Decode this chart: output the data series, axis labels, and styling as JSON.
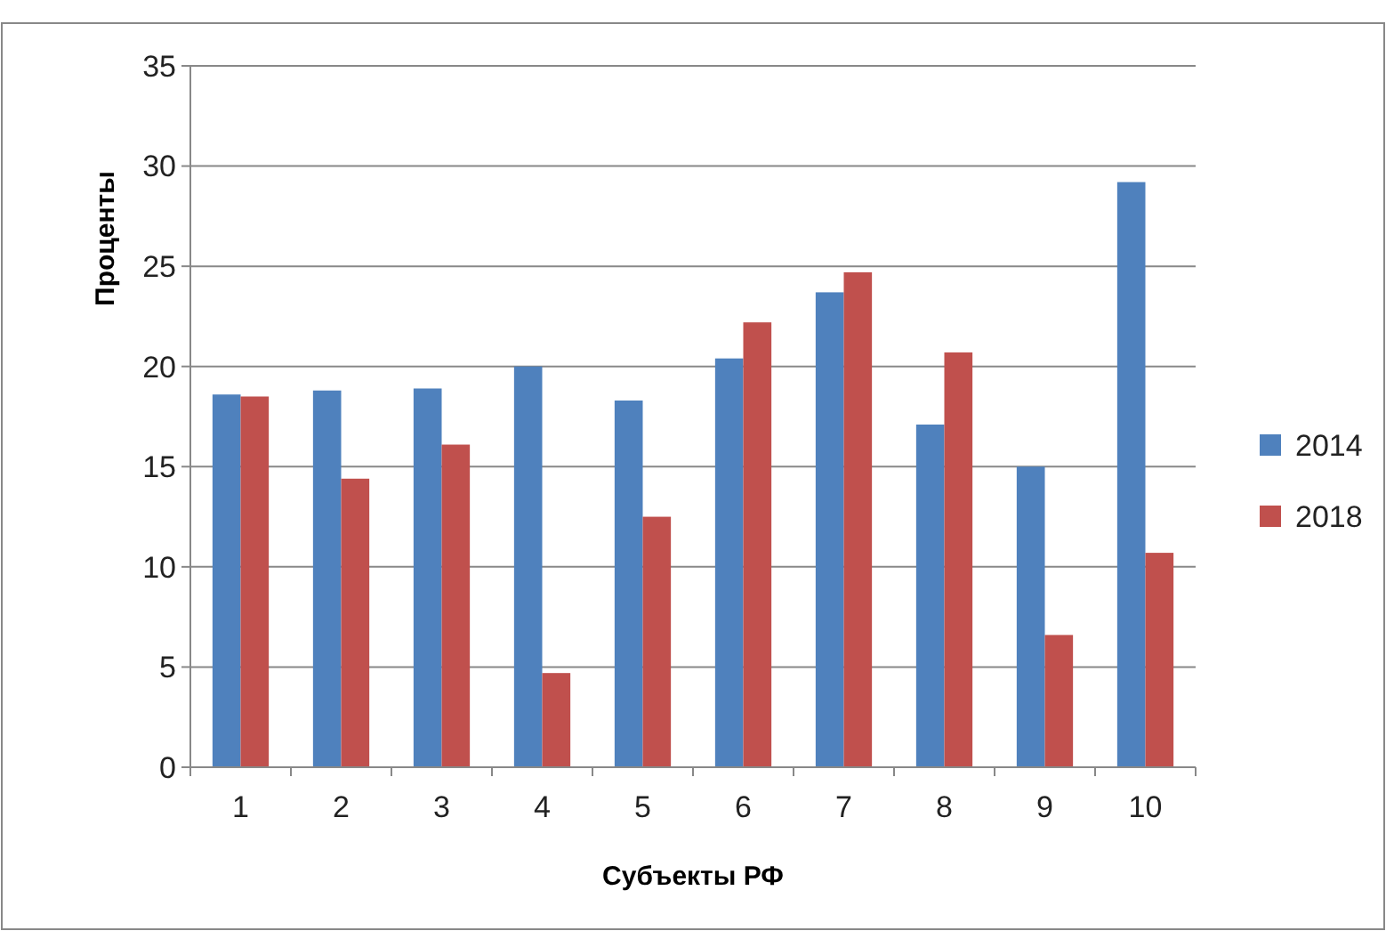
{
  "chart_data": {
    "type": "bar",
    "xlabel": "Субъекты РФ",
    "ylabel": "Проценты",
    "categories": [
      "1",
      "2",
      "3",
      "4",
      "5",
      "6",
      "7",
      "8",
      "9",
      "10"
    ],
    "series": [
      {
        "name": "2014",
        "color": "#4f81bd",
        "values": [
          18.6,
          18.8,
          18.9,
          20.0,
          18.3,
          20.4,
          23.7,
          17.1,
          15.0,
          29.2
        ]
      },
      {
        "name": "2018",
        "color": "#c0504d",
        "values": [
          18.5,
          14.4,
          16.1,
          4.7,
          12.5,
          22.2,
          24.7,
          20.7,
          6.6,
          10.7
        ]
      }
    ],
    "ylim": [
      0,
      35
    ],
    "yticks": [
      0,
      5,
      10,
      15,
      20,
      25,
      30,
      35
    ],
    "grid": "y",
    "legend": "right"
  }
}
